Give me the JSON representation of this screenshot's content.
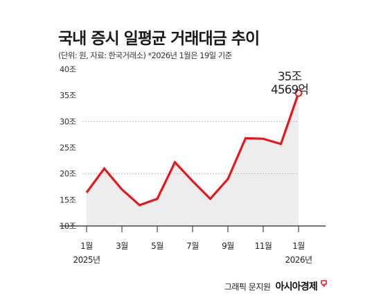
{
  "header": {
    "title": "국내 증시 일평균 거래대금 추이",
    "subtitle": "(단위: 원, 자료: 한국거래소) *2026년 1월은 19일 기준"
  },
  "footer": {
    "credit": "그래픽 문지원",
    "brand": "아시아경제"
  },
  "colors": {
    "line": "#e8161b",
    "area": "#ededed",
    "axis": "#222222",
    "gridline": "#bfbfbf"
  },
  "chart_data": {
    "type": "area",
    "title": "국내 증시 일평균 거래대금 추이",
    "ylim": [
      10,
      40
    ],
    "yticks": [
      10,
      15,
      20,
      25,
      30,
      35,
      40
    ],
    "ytick_labels": [
      "10조",
      "15조",
      "20조",
      "25조",
      "30조",
      "35조",
      "40조"
    ],
    "x": [
      "2025-01",
      "2025-02",
      "2025-03",
      "2025-04",
      "2025-05",
      "2025-06",
      "2025-07",
      "2025-08",
      "2025-09",
      "2025-10",
      "2025-11",
      "2025-12",
      "2026-01"
    ],
    "values": [
      16.4,
      21.0,
      17.0,
      14.0,
      15.2,
      22.2,
      18.6,
      15.2,
      19.0,
      26.8,
      26.7,
      25.7,
      35.4569
    ],
    "xtick_labels": [
      {
        "index": 0,
        "month": "1월",
        "year": "2025년"
      },
      {
        "index": 2,
        "month": "3월",
        "year": ""
      },
      {
        "index": 4,
        "month": "5월",
        "year": ""
      },
      {
        "index": 6,
        "month": "7월",
        "year": ""
      },
      {
        "index": 8,
        "month": "9월",
        "year": ""
      },
      {
        "index": 10,
        "month": "11월",
        "year": ""
      },
      {
        "index": 12,
        "month": "1월",
        "year": "2026년"
      }
    ],
    "annotation": {
      "index": 12,
      "line1": "35조",
      "line2": "4569억"
    },
    "grid": "dashed at 20조, 30조",
    "legend": "none"
  }
}
